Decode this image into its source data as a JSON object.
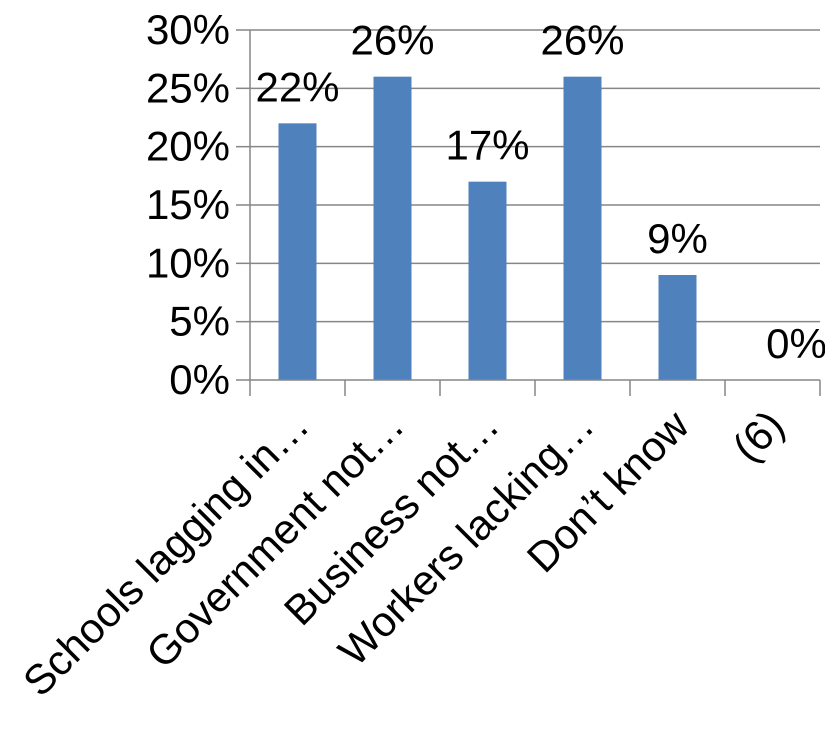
{
  "chart_data": {
    "type": "bar",
    "categories": [
      "Schools lagging in…",
      "Government not…",
      "Business not…",
      "Workers lacking…",
      "Don’t know",
      "(6)"
    ],
    "values": [
      22,
      26,
      17,
      26,
      9,
      0
    ],
    "data_labels": [
      "22%",
      "26%",
      "17%",
      "26%",
      "9%",
      "0%"
    ],
    "y_ticks": [
      0,
      5,
      10,
      15,
      20,
      25,
      30
    ],
    "y_tick_labels": [
      "0%",
      "5%",
      "10%",
      "15%",
      "20%",
      "25%",
      "30%"
    ],
    "ylim": [
      0,
      30
    ],
    "grid": true,
    "bar_color": "#4F81BD",
    "grid_color": "#868686"
  }
}
